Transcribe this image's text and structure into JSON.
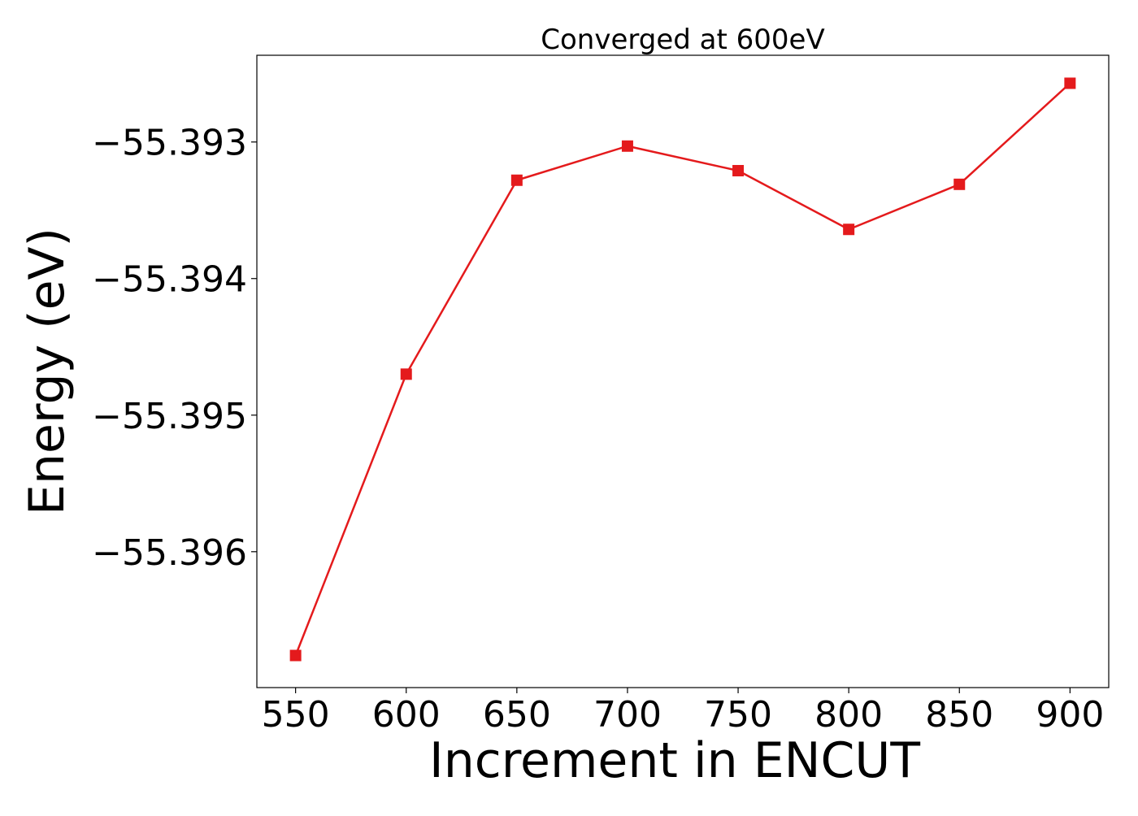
{
  "chart_data": {
    "type": "line",
    "title": "Converged at 600eV",
    "xlabel": "Increment in ENCUT",
    "ylabel": "Energy (eV)",
    "x": [
      550,
      600,
      650,
      700,
      750,
      800,
      850,
      900
    ],
    "series": [
      {
        "values": [
          -55.39676,
          -55.3947,
          -55.39328,
          -55.39303,
          -55.39321,
          -55.39364,
          -55.39331,
          -55.39257
        ],
        "color": "#e41a1c",
        "marker": "square"
      }
    ],
    "xticks": [
      550,
      600,
      650,
      700,
      750,
      800,
      850,
      900
    ],
    "xtick_labels": [
      "550",
      "600",
      "650",
      "700",
      "750",
      "800",
      "850",
      "900"
    ],
    "yticks": [
      -55.396,
      -55.395,
      -55.394,
      -55.393
    ],
    "ytick_labels": [
      "−55.396",
      "−55.395",
      "−55.394",
      "−55.393"
    ],
    "xlim": [
      532.5,
      917.5
    ],
    "ylim": [
      -55.396995,
      -55.392365
    ],
    "grid": false,
    "legend": "none"
  }
}
